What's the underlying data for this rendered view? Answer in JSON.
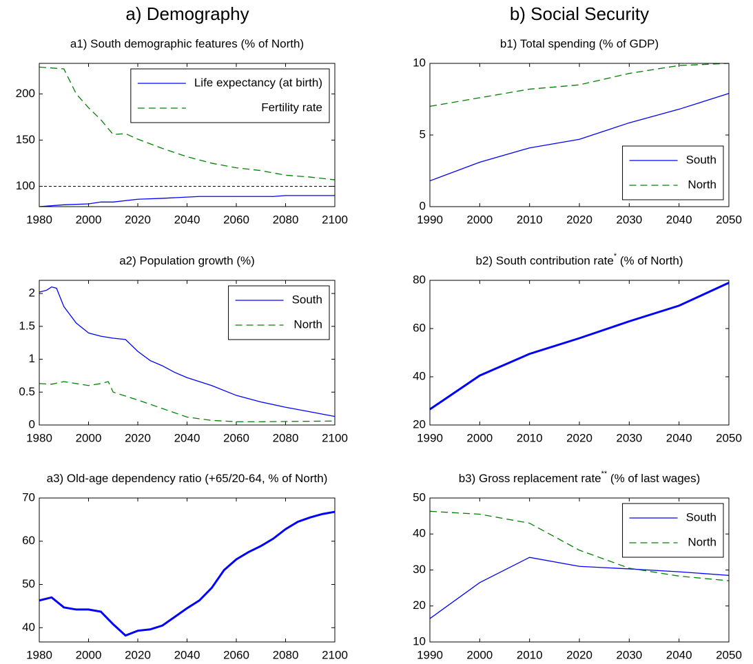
{
  "headings": [
    "a) Demography",
    "b) Social Security"
  ],
  "chart_data": [
    {
      "type": "line",
      "title": "a1) South demographic features (% of North)",
      "xlim": [
        1980,
        2100
      ],
      "xticks": [
        1980,
        2000,
        2020,
        2040,
        2060,
        2080,
        2100
      ],
      "ylim": [
        78,
        233
      ],
      "yticks": [
        100,
        150,
        200
      ],
      "hline": 100,
      "legend": "northeast",
      "series": [
        {
          "name": "Life expectancy (at birth)",
          "color": "#0000ff",
          "style": "solid",
          "width": 1.3,
          "x": [
            1980,
            1990,
            2000,
            2005,
            2010,
            2020,
            2030,
            2045,
            2075,
            2080,
            2100
          ],
          "values": [
            78,
            80,
            81,
            83,
            83,
            86,
            87,
            89,
            89,
            90,
            90
          ]
        },
        {
          "name": "Fertility rate",
          "color": "#008000",
          "style": "dashed",
          "width": 1.3,
          "x": [
            1980,
            1990,
            1995,
            2000,
            2005,
            2010,
            2015,
            2020,
            2030,
            2040,
            2050,
            2060,
            2070,
            2080,
            2090,
            2100
          ],
          "values": [
            229,
            227,
            200,
            185,
            172,
            156,
            157,
            151,
            141,
            132,
            125,
            120,
            117,
            112,
            110,
            107
          ]
        }
      ]
    },
    {
      "type": "line",
      "title": "a2) Population growth (%)",
      "xlim": [
        1980,
        2100
      ],
      "xticks": [
        1980,
        2000,
        2020,
        2040,
        2060,
        2080,
        2100
      ],
      "ylim": [
        0,
        2.2
      ],
      "yticks": [
        0,
        0.5,
        1,
        1.5,
        2
      ],
      "legend": "northeast",
      "series": [
        {
          "name": "South",
          "color": "#0000ff",
          "style": "solid",
          "width": 1.3,
          "x": [
            1980,
            1983,
            1985,
            1987,
            1990,
            1995,
            2000,
            2005,
            2010,
            2015,
            2020,
            2025,
            2030,
            2035,
            2040,
            2050,
            2060,
            2070,
            2080,
            2090,
            2100
          ],
          "values": [
            2.02,
            2.05,
            2.1,
            2.08,
            1.8,
            1.55,
            1.4,
            1.35,
            1.32,
            1.3,
            1.12,
            0.98,
            0.9,
            0.8,
            0.72,
            0.6,
            0.45,
            0.35,
            0.27,
            0.2,
            0.13
          ]
        },
        {
          "name": "North",
          "color": "#008000",
          "style": "dashed",
          "width": 1.3,
          "x": [
            1980,
            1985,
            1990,
            2000,
            2005,
            2008,
            2010,
            2020,
            2030,
            2040,
            2050,
            2060,
            2070,
            2100
          ],
          "values": [
            0.63,
            0.62,
            0.66,
            0.6,
            0.63,
            0.66,
            0.5,
            0.38,
            0.25,
            0.12,
            0.07,
            0.05,
            0.05,
            0.06
          ]
        }
      ]
    },
    {
      "type": "line",
      "title": "a3) Old-age dependency ratio (+65/20-64, % of North)",
      "xlim": [
        1980,
        2100
      ],
      "xticks": [
        1980,
        2000,
        2020,
        2040,
        2060,
        2080,
        2100
      ],
      "ylim": [
        36.7,
        70
      ],
      "yticks": [
        40,
        50,
        60,
        70
      ],
      "series": [
        {
          "color": "#0000ff",
          "style": "solid",
          "width": 3,
          "x": [
            1980,
            1985,
            1990,
            1995,
            2000,
            2005,
            2010,
            2015,
            2020,
            2025,
            2030,
            2035,
            2040,
            2045,
            2050,
            2055,
            2060,
            2065,
            2070,
            2075,
            2080,
            2085,
            2090,
            2095,
            2100
          ],
          "values": [
            46.3,
            47,
            44.7,
            44.2,
            44.2,
            43.7,
            40.8,
            38.2,
            39.3,
            39.6,
            40.5,
            42.5,
            44.5,
            46.3,
            49.2,
            53.3,
            55.8,
            57.5,
            58.9,
            60.6,
            62.8,
            64.5,
            65.5,
            66.3,
            66.8
          ]
        }
      ]
    },
    {
      "type": "line",
      "title": "b1) Total spending (% of GDP)",
      "xlim": [
        1990,
        2050
      ],
      "xticks": [
        1990,
        2000,
        2010,
        2020,
        2030,
        2040,
        2050
      ],
      "ylim": [
        0,
        10
      ],
      "yticks": [
        0,
        5,
        10
      ],
      "legend": "southeast",
      "series": [
        {
          "name": "South",
          "color": "#0000ff",
          "style": "solid",
          "width": 1.3,
          "x": [
            1990,
            2000,
            2010,
            2020,
            2030,
            2040,
            2050
          ],
          "values": [
            1.8,
            3.1,
            4.1,
            4.7,
            5.85,
            6.8,
            7.9
          ]
        },
        {
          "name": "North",
          "color": "#008000",
          "style": "dashed",
          "width": 1.3,
          "x": [
            1990,
            2000,
            2010,
            2020,
            2030,
            2040,
            2050
          ],
          "values": [
            7.0,
            7.6,
            8.2,
            8.5,
            9.3,
            9.85,
            10.0
          ]
        }
      ]
    },
    {
      "type": "line",
      "title": "b2) South contribution rate",
      "title_sup": "*",
      "title_end": " (% of North)",
      "xlim": [
        1990,
        2050
      ],
      "xticks": [
        1990,
        2000,
        2010,
        2020,
        2030,
        2040,
        2050
      ],
      "ylim": [
        20,
        80
      ],
      "yticks": [
        20,
        40,
        60,
        80
      ],
      "series": [
        {
          "color": "#0000ff",
          "style": "solid",
          "width": 3,
          "x": [
            1990,
            2000,
            2010,
            2020,
            2030,
            2040,
            2050
          ],
          "values": [
            26.5,
            40.5,
            49.5,
            56,
            63,
            69.5,
            79
          ]
        }
      ]
    },
    {
      "type": "line",
      "title": "b3) Gross replacement rate",
      "title_sup": "**",
      "title_end": " (% of last wages)",
      "xlim": [
        1990,
        2050
      ],
      "xticks": [
        1990,
        2000,
        2010,
        2020,
        2030,
        2040,
        2050
      ],
      "ylim": [
        10,
        50
      ],
      "yticks": [
        10,
        20,
        30,
        40,
        50
      ],
      "legend": "northeast",
      "series": [
        {
          "name": "South",
          "color": "#0000ff",
          "style": "solid",
          "width": 1.3,
          "x": [
            1990,
            2000,
            2010,
            2020,
            2030,
            2040,
            2050
          ],
          "values": [
            16.5,
            26.5,
            33.5,
            31,
            30.3,
            29.5,
            28.5
          ]
        },
        {
          "name": "North",
          "color": "#008000",
          "style": "dashed",
          "width": 1.3,
          "x": [
            1990,
            2000,
            2010,
            2020,
            2030,
            2040,
            2050
          ],
          "values": [
            46.3,
            45.5,
            43,
            35.5,
            30.5,
            28.3,
            27
          ]
        }
      ]
    }
  ]
}
